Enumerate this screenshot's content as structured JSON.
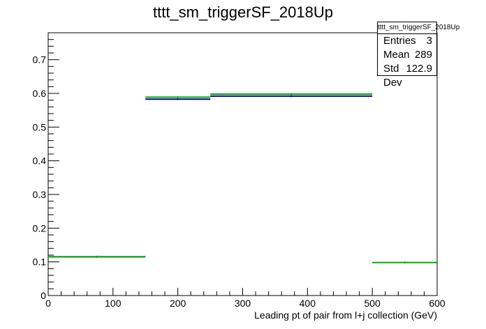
{
  "chart_data": {
    "type": "histogram",
    "title": "tttt_sm_triggerSF_2018Up",
    "xlabel": "Leading pt of pair from l+j collection (GeV)",
    "ylabel": "",
    "xlim": [
      0,
      600
    ],
    "ylim": [
      0,
      0.78
    ],
    "x_ticks": [
      0,
      100,
      200,
      300,
      400,
      500,
      600
    ],
    "y_ticks": [
      0,
      0.1,
      0.2,
      0.3,
      0.4,
      0.5,
      0.6,
      0.7
    ],
    "bin_edges": [
      0,
      150,
      250,
      500,
      600
    ],
    "series": [
      {
        "color": "#000099",
        "values": [
          0.115,
          0.583,
          0.592,
          null
        ]
      },
      {
        "color": "#00aa00",
        "values": [
          0.115,
          0.589,
          0.598,
          0.098
        ]
      }
    ],
    "grid": false,
    "stats": {
      "title": "tttt_sm_triggerSF_2018Up",
      "rows": [
        {
          "label": "Entries",
          "value": "3"
        },
        {
          "label": "Mean",
          "value": "289"
        },
        {
          "label": "Std Dev",
          "value": "122.9"
        }
      ]
    }
  }
}
